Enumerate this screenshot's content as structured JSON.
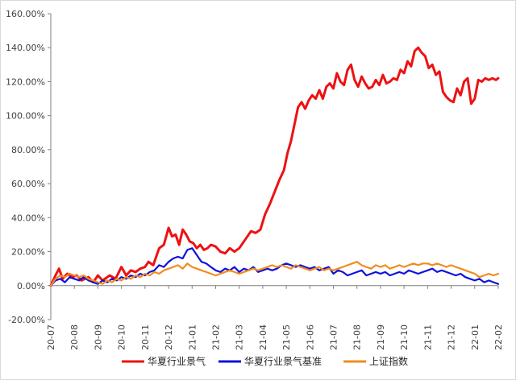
{
  "chart_data": {
    "type": "line",
    "title": "",
    "xlabel": "",
    "ylabel": "",
    "ylim": [
      -20,
      160
    ],
    "y_unit": "%",
    "grid": false,
    "legend_position": "bottom",
    "y_ticks": [
      "-20.00%",
      "0.00%",
      "20.00%",
      "40.00%",
      "60.00%",
      "80.00%",
      "100.00%",
      "120.00%",
      "140.00%",
      "160.00%"
    ],
    "y_tick_values": [
      -20,
      0,
      20,
      40,
      60,
      80,
      100,
      120,
      140,
      160
    ],
    "x_ticks": [
      "20-07",
      "20-08",
      "20-09",
      "20-10",
      "20-11",
      "20-12",
      "21-01",
      "21-02",
      "21-03",
      "21-04",
      "21-05",
      "21-06",
      "21-07",
      "21-08",
      "21-09",
      "21-10",
      "21-11",
      "21-12",
      "22-01",
      "22-02"
    ],
    "x_tick_values": [
      0,
      1,
      2,
      3,
      4,
      5,
      6,
      7,
      8,
      9,
      10,
      11,
      12,
      13,
      14,
      15,
      16,
      17,
      18,
      19
    ],
    "x_index_note": "x in months since 20-07 (0 = 20-07)",
    "series": [
      {
        "name": "华夏行业景气",
        "color": "#ee1111",
        "x": [
          0,
          0.2,
          0.35,
          0.5,
          0.7,
          0.9,
          1.1,
          1.3,
          1.6,
          1.8,
          2.0,
          2.2,
          2.5,
          2.75,
          3.0,
          3.2,
          3.4,
          3.6,
          3.8,
          4.0,
          4.15,
          4.35,
          4.6,
          4.8,
          5.0,
          5.15,
          5.3,
          5.45,
          5.6,
          5.75,
          5.9,
          6.05,
          6.2,
          6.35,
          6.5,
          6.65,
          6.8,
          7.0,
          7.2,
          7.4,
          7.6,
          7.8,
          8.0,
          8.25,
          8.5,
          8.7,
          8.9,
          9.1,
          9.3,
          9.5,
          9.7,
          9.9,
          10.05,
          10.2,
          10.35,
          10.5,
          10.65,
          10.8,
          10.95,
          11.1,
          11.25,
          11.4,
          11.55,
          11.7,
          11.85,
          12.0,
          12.15,
          12.3,
          12.45,
          12.6,
          12.75,
          12.9,
          13.05,
          13.2,
          13.35,
          13.5,
          13.65,
          13.8,
          13.95,
          14.1,
          14.25,
          14.4,
          14.55,
          14.7,
          14.85,
          15.0,
          15.15,
          15.3,
          15.45,
          15.6,
          15.75,
          15.9,
          16.05,
          16.2,
          16.35,
          16.5,
          16.65,
          16.8,
          16.95,
          17.1,
          17.25,
          17.4,
          17.55,
          17.7,
          17.85,
          18.0,
          18.15,
          18.3,
          18.45,
          18.6,
          18.75,
          18.9,
          19.0
        ],
        "values": [
          0,
          6,
          10,
          4,
          7,
          5,
          6,
          3,
          5,
          2,
          6,
          3,
          6,
          4,
          11,
          6,
          9,
          8,
          10,
          11,
          14,
          12,
          22,
          24,
          34,
          29,
          30,
          24,
          33,
          30,
          26,
          25,
          22,
          24,
          21,
          22,
          24,
          23,
          20,
          19,
          22,
          20,
          22,
          27,
          32,
          31,
          33,
          42,
          48,
          55,
          62,
          68,
          78,
          85,
          95,
          105,
          108,
          104,
          109,
          112,
          110,
          115,
          110,
          117,
          119,
          116,
          125,
          120,
          118,
          127,
          130,
          121,
          117,
          123,
          119,
          116,
          117,
          121,
          118,
          124,
          119,
          120,
          122,
          121,
          127,
          125,
          132,
          129,
          138,
          140,
          137,
          135,
          128,
          130,
          124,
          126,
          114,
          111,
          109,
          108,
          116,
          112,
          120,
          122,
          107,
          110,
          121,
          120,
          122,
          121,
          122,
          121,
          122
        ]
      },
      {
        "name": "华夏行业景气基准",
        "color": "#1010dd",
        "x": [
          0,
          0.2,
          0.4,
          0.6,
          0.8,
          1.0,
          1.2,
          1.4,
          1.6,
          1.8,
          2.0,
          2.2,
          2.4,
          2.6,
          2.8,
          3.0,
          3.2,
          3.4,
          3.6,
          3.8,
          4.0,
          4.2,
          4.4,
          4.6,
          4.8,
          5.0,
          5.2,
          5.4,
          5.6,
          5.8,
          6.0,
          6.2,
          6.4,
          6.6,
          6.8,
          7.0,
          7.2,
          7.4,
          7.6,
          7.8,
          8.0,
          8.2,
          8.4,
          8.6,
          8.8,
          9.0,
          9.2,
          9.4,
          9.6,
          9.8,
          10.0,
          10.2,
          10.4,
          10.6,
          10.8,
          11.0,
          11.2,
          11.4,
          11.6,
          11.8,
          12.0,
          12.2,
          12.4,
          12.6,
          12.8,
          13.0,
          13.2,
          13.4,
          13.6,
          13.8,
          14.0,
          14.2,
          14.4,
          14.6,
          14.8,
          15.0,
          15.2,
          15.4,
          15.6,
          15.8,
          16.0,
          16.2,
          16.4,
          16.6,
          16.8,
          17.0,
          17.2,
          17.4,
          17.6,
          17.8,
          18.0,
          18.2,
          18.4,
          18.6,
          18.8,
          19.0
        ],
        "values": [
          0,
          3,
          4,
          2,
          5,
          4,
          3,
          5,
          3,
          2,
          1,
          3,
          2,
          4,
          3,
          5,
          4,
          6,
          5,
          7,
          6,
          8,
          9,
          12,
          11,
          14,
          16,
          17,
          16,
          21,
          22,
          18,
          14,
          13,
          11,
          9,
          8,
          10,
          9,
          11,
          8,
          10,
          9,
          11,
          8,
          9,
          10,
          9,
          10,
          12,
          13,
          12,
          11,
          12,
          11,
          10,
          11,
          9,
          10,
          11,
          7,
          9,
          8,
          6,
          7,
          8,
          9,
          6,
          7,
          8,
          7,
          8,
          6,
          7,
          8,
          7,
          9,
          8,
          7,
          8,
          9,
          10,
          8,
          9,
          8,
          7,
          6,
          7,
          5,
          4,
          3,
          4,
          2,
          3,
          2,
          1
        ]
      },
      {
        "name": "上证指数",
        "color": "#f08c1e",
        "x": [
          0,
          0.2,
          0.4,
          0.6,
          0.8,
          1.0,
          1.2,
          1.4,
          1.6,
          1.8,
          2.0,
          2.2,
          2.4,
          2.6,
          2.8,
          3.0,
          3.2,
          3.4,
          3.6,
          3.8,
          4.0,
          4.2,
          4.4,
          4.6,
          4.8,
          5.0,
          5.2,
          5.4,
          5.6,
          5.8,
          6.0,
          6.2,
          6.4,
          6.6,
          6.8,
          7.0,
          7.2,
          7.4,
          7.6,
          7.8,
          8.0,
          8.2,
          8.4,
          8.6,
          8.8,
          9.0,
          9.2,
          9.4,
          9.6,
          9.8,
          10.0,
          10.2,
          10.4,
          10.6,
          10.8,
          11.0,
          11.2,
          11.4,
          11.6,
          11.8,
          12.0,
          12.2,
          12.4,
          12.6,
          12.8,
          13.0,
          13.2,
          13.4,
          13.6,
          13.8,
          14.0,
          14.2,
          14.4,
          14.6,
          14.8,
          15.0,
          15.2,
          15.4,
          15.6,
          15.8,
          16.0,
          16.2,
          16.4,
          16.6,
          16.8,
          17.0,
          17.2,
          17.4,
          17.6,
          17.8,
          18.0,
          18.2,
          18.4,
          18.6,
          18.8,
          19.0
        ],
        "values": [
          0,
          4,
          6,
          5,
          7,
          6,
          5,
          6,
          4,
          3,
          2,
          1,
          3,
          2,
          4,
          3,
          5,
          4,
          6,
          5,
          7,
          6,
          8,
          7,
          9,
          10,
          11,
          12,
          10,
          13,
          11,
          10,
          9,
          8,
          7,
          6,
          7,
          8,
          9,
          8,
          7,
          8,
          9,
          10,
          9,
          10,
          11,
          12,
          11,
          12,
          11,
          10,
          12,
          11,
          10,
          9,
          10,
          11,
          9,
          10,
          9,
          10,
          11,
          12,
          13,
          14,
          12,
          11,
          10,
          12,
          11,
          12,
          10,
          11,
          12,
          11,
          12,
          13,
          12,
          13,
          13,
          12,
          13,
          12,
          11,
          12,
          11,
          10,
          9,
          8,
          7,
          5,
          6,
          7,
          6,
          7
        ]
      }
    ]
  }
}
